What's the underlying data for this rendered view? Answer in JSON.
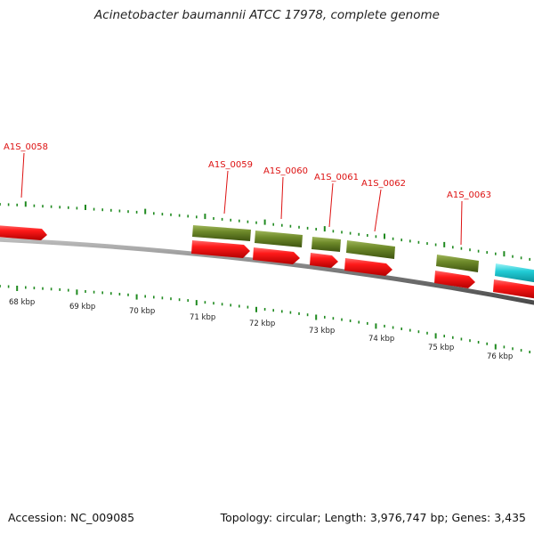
{
  "title": "Acinetobacter baumannii ATCC 17978, complete genome",
  "footer": {
    "accession": "Accession: NC_009085",
    "summary": "Topology: circular; Length: 3,976,747 bp; Genes: 3,435"
  },
  "colors": {
    "gene_forward": "#ee1111",
    "cds_forward": "#6e8a2a",
    "feature_other": "#22ccd6",
    "backbone": "#888888",
    "tick": "#1f8a1f",
    "label": "#dd1111"
  },
  "gene_labels": [
    "A1S_0058",
    "A1S_0059",
    "A1S_0060",
    "A1S_0061",
    "A1S_0062",
    "A1S_0063"
  ],
  "kbp_labels": [
    "68 kbp",
    "69 kbp",
    "70 kbp",
    "71 kbp",
    "72 kbp",
    "73 kbp",
    "74 kbp",
    "75 kbp",
    "76 kbp"
  ]
}
